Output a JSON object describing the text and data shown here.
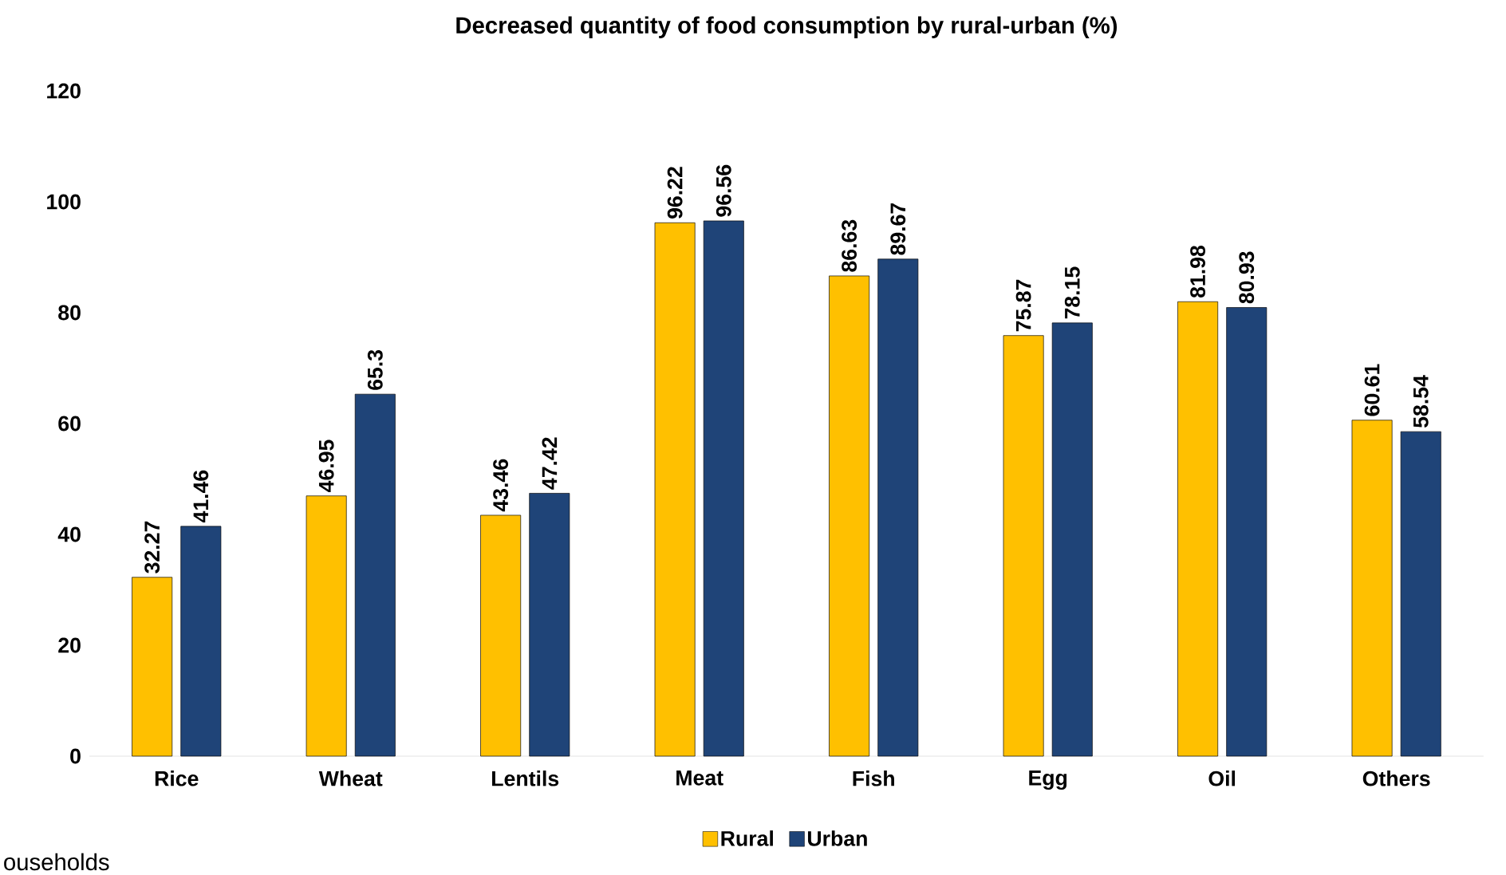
{
  "chart_data": {
    "type": "bar",
    "title": "Decreased quantity of food consumption by rural-urban (%)",
    "categories": [
      "Rice",
      "Wheat",
      "Lentils",
      "Meat",
      "Fish",
      "Egg",
      "Oil",
      "Others"
    ],
    "series": [
      {
        "name": "Rural",
        "color": "#ffc000",
        "values": [
          32.27,
          46.95,
          43.46,
          96.22,
          86.63,
          75.87,
          81.98,
          60.61
        ]
      },
      {
        "name": "Urban",
        "color": "#1f4478",
        "values": [
          41.46,
          65.3,
          47.42,
          96.56,
          89.67,
          78.15,
          80.93,
          58.54
        ]
      }
    ],
    "ylim": [
      0,
      120
    ],
    "yticks": [
      0,
      20,
      40,
      60,
      80,
      100,
      120
    ],
    "legend": "bottom",
    "data_labels": true,
    "annotations": [
      "ouseholds"
    ]
  }
}
